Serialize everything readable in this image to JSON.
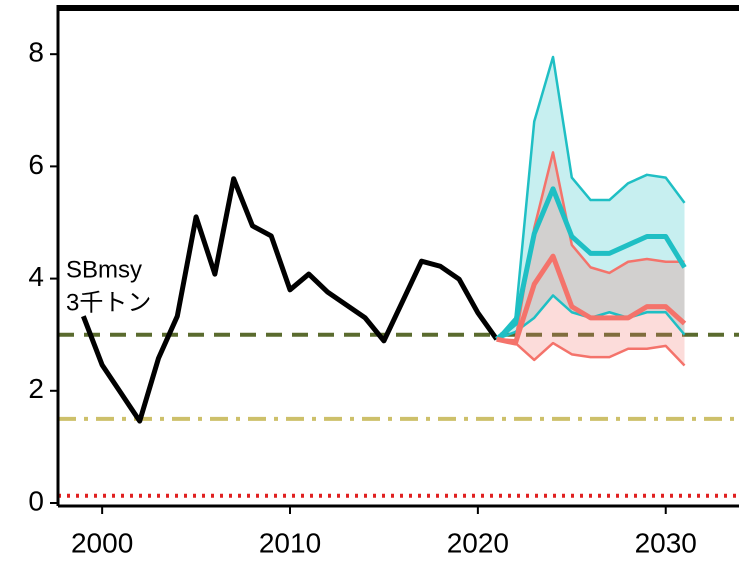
{
  "chart_data": {
    "type": "line",
    "x": [
      1999,
      2000,
      2001,
      2002,
      2003,
      2004,
      2005,
      2006,
      2007,
      2008,
      2009,
      2010,
      2011,
      2012,
      2013,
      2014,
      2015,
      2016,
      2017,
      2018,
      2019,
      2020,
      2021,
      2022,
      2023,
      2024,
      2025,
      2026,
      2027,
      2028,
      2029,
      2030,
      2031
    ],
    "xlim": [
      1997.65,
      2033.9
    ],
    "xticks": [
      2000,
      2010,
      2020,
      2030
    ],
    "ylim": [
      0,
      8.8
    ],
    "yticks": [
      0,
      2,
      4,
      6,
      8
    ],
    "series": [
      {
        "color": "#000000",
        "values": [
          3.33,
          2.46,
          1.96,
          1.46,
          2.58,
          3.33,
          5.1,
          4.08,
          5.78,
          4.94,
          4.76,
          3.8,
          4.08,
          3.76,
          3.53,
          3.3,
          2.89,
          3.6,
          4.31,
          4.22,
          3.99,
          3.39,
          2.92,
          null,
          null,
          null,
          null,
          null,
          null,
          null,
          null,
          null,
          null
        ]
      },
      {
        "color": "#1fbfc4",
        "values": [
          null,
          null,
          null,
          null,
          null,
          null,
          null,
          null,
          null,
          null,
          null,
          null,
          null,
          null,
          null,
          null,
          null,
          null,
          null,
          null,
          null,
          null,
          2.92,
          3.2,
          4.8,
          5.6,
          4.75,
          4.45,
          4.45,
          4.6,
          4.75,
          4.75,
          4.2
        ],
        "upper": [
          null,
          null,
          null,
          null,
          null,
          null,
          null,
          null,
          null,
          null,
          null,
          null,
          null,
          null,
          null,
          null,
          null,
          null,
          null,
          null,
          null,
          null,
          2.92,
          3.3,
          6.8,
          7.95,
          5.8,
          5.4,
          5.4,
          5.7,
          5.85,
          5.8,
          5.35
        ],
        "lower": [
          null,
          null,
          null,
          null,
          null,
          null,
          null,
          null,
          null,
          null,
          null,
          null,
          null,
          null,
          null,
          null,
          null,
          null,
          null,
          null,
          null,
          null,
          2.92,
          3.05,
          3.3,
          3.7,
          3.4,
          3.3,
          3.4,
          3.3,
          3.4,
          3.4,
          3.0
        ]
      },
      {
        "color": "#f4736b",
        "values": [
          null,
          null,
          null,
          null,
          null,
          null,
          null,
          null,
          null,
          null,
          null,
          null,
          null,
          null,
          null,
          null,
          null,
          null,
          null,
          null,
          null,
          null,
          2.92,
          2.85,
          3.9,
          4.4,
          3.5,
          3.3,
          3.3,
          3.3,
          3.5,
          3.5,
          3.2
        ],
        "upper": [
          null,
          null,
          null,
          null,
          null,
          null,
          null,
          null,
          null,
          null,
          null,
          null,
          null,
          null,
          null,
          null,
          null,
          null,
          null,
          null,
          null,
          null,
          2.92,
          2.9,
          4.9,
          6.25,
          4.6,
          4.2,
          4.1,
          4.3,
          4.35,
          4.3,
          4.3
        ],
        "lower": [
          null,
          null,
          null,
          null,
          null,
          null,
          null,
          null,
          null,
          null,
          null,
          null,
          null,
          null,
          null,
          null,
          null,
          null,
          null,
          null,
          null,
          null,
          2.92,
          2.85,
          2.55,
          2.85,
          2.65,
          2.6,
          2.6,
          2.75,
          2.75,
          2.8,
          2.45
        ]
      }
    ],
    "hlines": [
      {
        "value": 3.0,
        "color": "#5a6b2e",
        "style": "dashed"
      },
      {
        "value": 1.5,
        "color": "#cdc06a",
        "style": "dashdot"
      },
      {
        "value": 0.13,
        "color": "#e02020",
        "style": "dotted"
      }
    ],
    "annotations": [
      "SBmsy",
      "3千トン"
    ]
  }
}
